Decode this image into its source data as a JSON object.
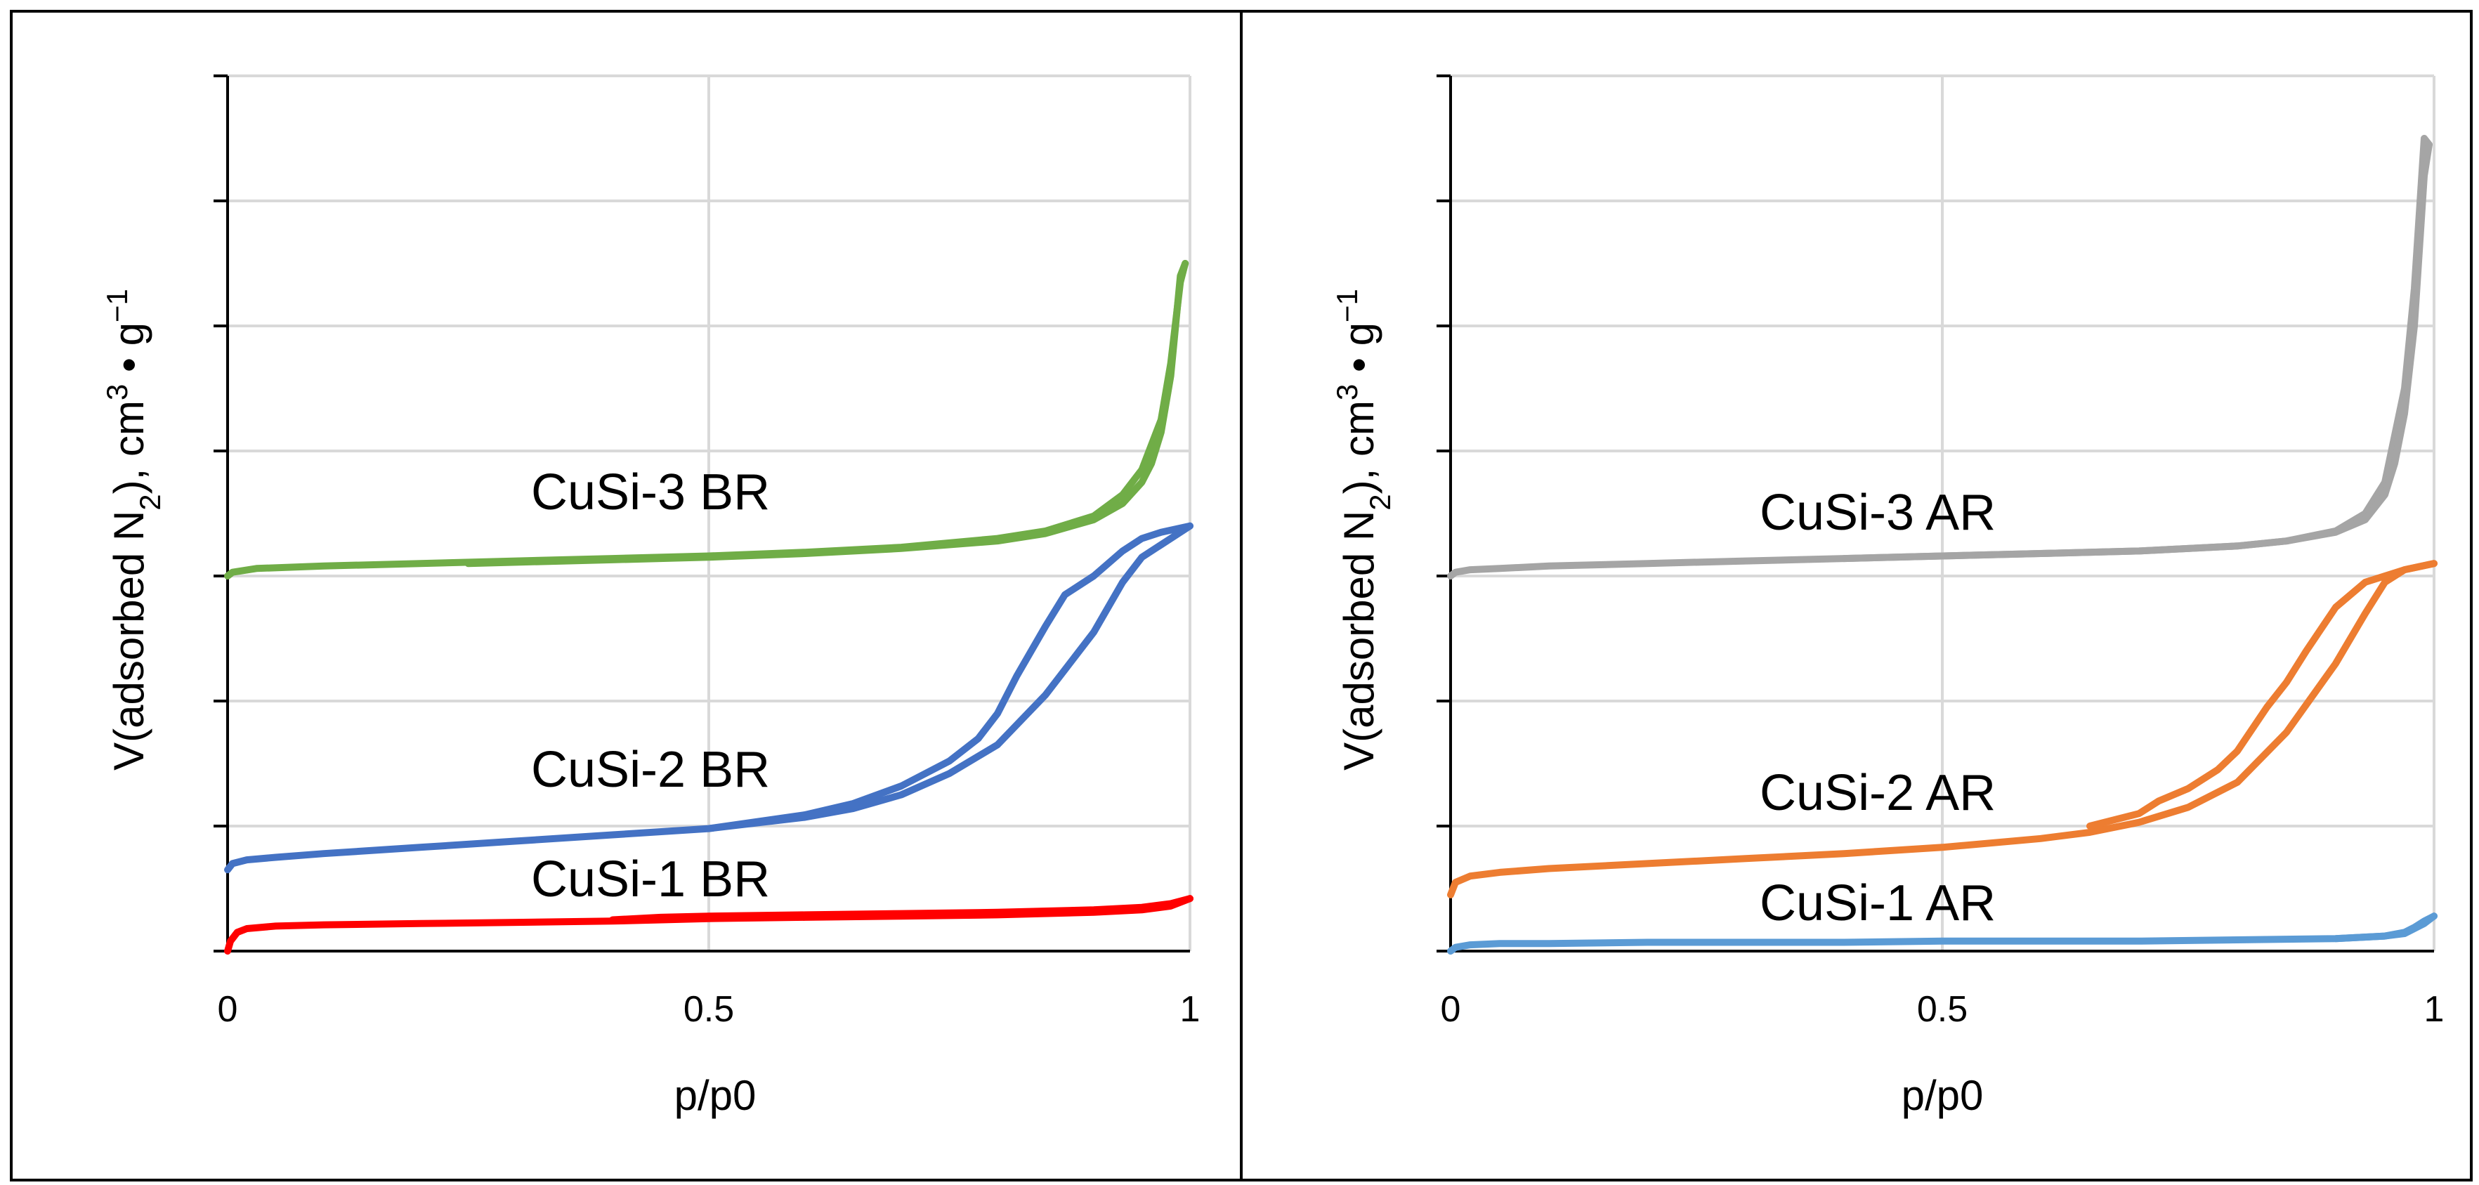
{
  "chart_data": [
    {
      "type": "line",
      "panel": "left",
      "xlabel": "p/p0",
      "ylabel_parts": {
        "main": "V(adsorbed N",
        "sub": "2",
        "mid": "), cm",
        "sup": "3",
        "dot": " • g",
        "sup2": "−1"
      },
      "xlim": [
        0,
        1
      ],
      "ylim": [
        0,
        7
      ],
      "x_ticks": [
        0,
        0.5,
        1
      ],
      "x_tick_labels": [
        "0",
        "0.5",
        "1"
      ],
      "y_ticks": [
        0,
        1,
        2,
        3,
        4,
        5,
        6,
        7
      ],
      "y_tick_labels_visible": false,
      "grid": true,
      "annotations": [
        "CuSi-3 BR",
        "CuSi-2 BR",
        "CuSi-1 BR"
      ],
      "series": [
        {
          "name": "CuSi-3 BR",
          "color": "#70ad47",
          "adsorption": {
            "x": [
              0,
              0.005,
              0.03,
              0.1,
              0.2,
              0.3,
              0.4,
              0.5,
              0.6,
              0.7,
              0.8,
              0.85,
              0.9,
              0.93,
              0.95,
              0.97,
              0.98,
              0.99,
              0.995
            ],
            "y": [
              3.0,
              3.03,
              3.06,
              3.08,
              3.1,
              3.12,
              3.14,
              3.16,
              3.19,
              3.23,
              3.3,
              3.36,
              3.48,
              3.65,
              3.85,
              4.25,
              4.7,
              5.35,
              5.5
            ]
          },
          "desorption": {
            "x": [
              0.995,
              0.99,
              0.985,
              0.98,
              0.97,
              0.96,
              0.95,
              0.93,
              0.9,
              0.85,
              0.8,
              0.7,
              0.6,
              0.5,
              0.4,
              0.3,
              0.25
            ],
            "y": [
              5.5,
              5.4,
              5.0,
              4.6,
              4.15,
              3.9,
              3.75,
              3.58,
              3.45,
              3.34,
              3.28,
              3.22,
              3.18,
              3.15,
              3.13,
              3.11,
              3.1
            ]
          }
        },
        {
          "name": "CuSi-2 BR",
          "color": "#4472c4",
          "adsorption": {
            "x": [
              0,
              0.005,
              0.02,
              0.05,
              0.1,
              0.2,
              0.3,
              0.4,
              0.5,
              0.6,
              0.65,
              0.7,
              0.75,
              0.8,
              0.85,
              0.9,
              0.93,
              0.95,
              0.97,
              1.0
            ],
            "y": [
              0.65,
              0.7,
              0.73,
              0.75,
              0.78,
              0.83,
              0.88,
              0.93,
              0.98,
              1.07,
              1.14,
              1.25,
              1.42,
              1.65,
              2.05,
              2.55,
              2.95,
              3.15,
              3.25,
              3.4
            ]
          },
          "desorption": {
            "x": [
              1.0,
              0.97,
              0.95,
              0.93,
              0.9,
              0.87,
              0.85,
              0.82,
              0.8,
              0.78,
              0.75,
              0.7,
              0.65,
              0.6,
              0.5
            ],
            "y": [
              3.4,
              3.35,
              3.3,
              3.2,
              3.0,
              2.85,
              2.6,
              2.2,
              1.9,
              1.7,
              1.52,
              1.32,
              1.18,
              1.09,
              0.98
            ]
          }
        },
        {
          "name": "CuSi-1 BR",
          "color": "#ff0000",
          "adsorption": {
            "x": [
              0,
              0.003,
              0.01,
              0.02,
              0.05,
              0.1,
              0.2,
              0.3,
              0.4,
              0.5,
              0.6,
              0.7,
              0.8,
              0.9,
              0.95,
              0.98,
              1.0
            ],
            "y": [
              0.0,
              0.08,
              0.15,
              0.18,
              0.2,
              0.21,
              0.22,
              0.23,
              0.24,
              0.26,
              0.27,
              0.28,
              0.29,
              0.31,
              0.33,
              0.36,
              0.42
            ]
          },
          "desorption": {
            "x": [
              1.0,
              0.98,
              0.95,
              0.9,
              0.8,
              0.7,
              0.6,
              0.5,
              0.45,
              0.4
            ],
            "y": [
              0.42,
              0.38,
              0.35,
              0.33,
              0.31,
              0.3,
              0.29,
              0.28,
              0.27,
              0.25
            ]
          }
        }
      ]
    },
    {
      "type": "line",
      "panel": "right",
      "xlabel": "p/p0",
      "ylabel_parts": {
        "main": "V(adsorbed N",
        "sub": "2",
        "mid": "), cm",
        "sup": "3",
        "dot": " • g",
        "sup2": "−1"
      },
      "xlim": [
        0,
        1
      ],
      "ylim": [
        0,
        7
      ],
      "x_ticks": [
        0,
        0.5,
        1
      ],
      "x_tick_labels": [
        "0",
        "0.5",
        "1"
      ],
      "y_ticks": [
        0,
        1,
        2,
        3,
        4,
        5,
        6,
        7
      ],
      "y_tick_labels_visible": false,
      "grid": true,
      "annotations": [
        "CuSi-3 AR",
        "CuSi-2 AR",
        "CuSi-1 AR"
      ],
      "series": [
        {
          "name": "CuSi-3 AR",
          "color": "#a5a5a5",
          "adsorption": {
            "x": [
              0,
              0.005,
              0.02,
              0.05,
              0.1,
              0.2,
              0.3,
              0.4,
              0.5,
              0.6,
              0.7,
              0.8,
              0.85,
              0.9,
              0.93,
              0.95,
              0.97,
              0.98,
              0.99,
              0.995
            ],
            "y": [
              3.0,
              3.03,
              3.05,
              3.06,
              3.08,
              3.1,
              3.12,
              3.14,
              3.16,
              3.18,
              3.2,
              3.24,
              3.28,
              3.36,
              3.5,
              3.75,
              4.5,
              5.3,
              6.5,
              6.45
            ]
          },
          "desorption": {
            "x": [
              0.995,
              0.99,
              0.985,
              0.98,
              0.97,
              0.96,
              0.95,
              0.93,
              0.9,
              0.85,
              0.8,
              0.7,
              0.6,
              0.5,
              0.4
            ],
            "y": [
              6.45,
              6.2,
              5.6,
              5.0,
              4.3,
              3.9,
              3.65,
              3.45,
              3.35,
              3.28,
              3.24,
              3.2,
              3.18,
              3.16,
              3.14
            ]
          }
        },
        {
          "name": "CuSi-2 AR",
          "color": "#ed7d31",
          "adsorption": {
            "x": [
              0,
              0.005,
              0.02,
              0.05,
              0.1,
              0.2,
              0.3,
              0.4,
              0.5,
              0.6,
              0.65,
              0.7,
              0.75,
              0.8,
              0.85,
              0.9,
              0.93,
              0.95,
              0.97,
              1.0
            ],
            "y": [
              0.45,
              0.55,
              0.6,
              0.63,
              0.66,
              0.7,
              0.74,
              0.78,
              0.83,
              0.9,
              0.95,
              1.03,
              1.15,
              1.35,
              1.75,
              2.3,
              2.7,
              2.95,
              3.05,
              3.1
            ]
          },
          "desorption": {
            "x": [
              1.0,
              0.97,
              0.95,
              0.93,
              0.9,
              0.87,
              0.85,
              0.83,
              0.8,
              0.78,
              0.75,
              0.72,
              0.7,
              0.65
            ],
            "y": [
              3.1,
              3.05,
              3.0,
              2.95,
              2.75,
              2.4,
              2.15,
              1.95,
              1.6,
              1.45,
              1.3,
              1.2,
              1.1,
              1.0
            ]
          }
        },
        {
          "name": "CuSi-1 AR",
          "color": "#5b9bd5",
          "adsorption": {
            "x": [
              0,
              0.005,
              0.02,
              0.05,
              0.1,
              0.2,
              0.3,
              0.4,
              0.5,
              0.6,
              0.7,
              0.8,
              0.9,
              0.95,
              0.97,
              0.99,
              1.0
            ],
            "y": [
              0.0,
              0.03,
              0.05,
              0.06,
              0.06,
              0.07,
              0.07,
              0.07,
              0.08,
              0.08,
              0.08,
              0.09,
              0.1,
              0.12,
              0.14,
              0.22,
              0.28
            ]
          },
          "desorption": {
            "x": [
              1.0,
              0.99,
              0.98,
              0.97,
              0.95,
              0.9
            ],
            "y": [
              0.28,
              0.24,
              0.19,
              0.15,
              0.12,
              0.1
            ]
          }
        }
      ]
    }
  ]
}
